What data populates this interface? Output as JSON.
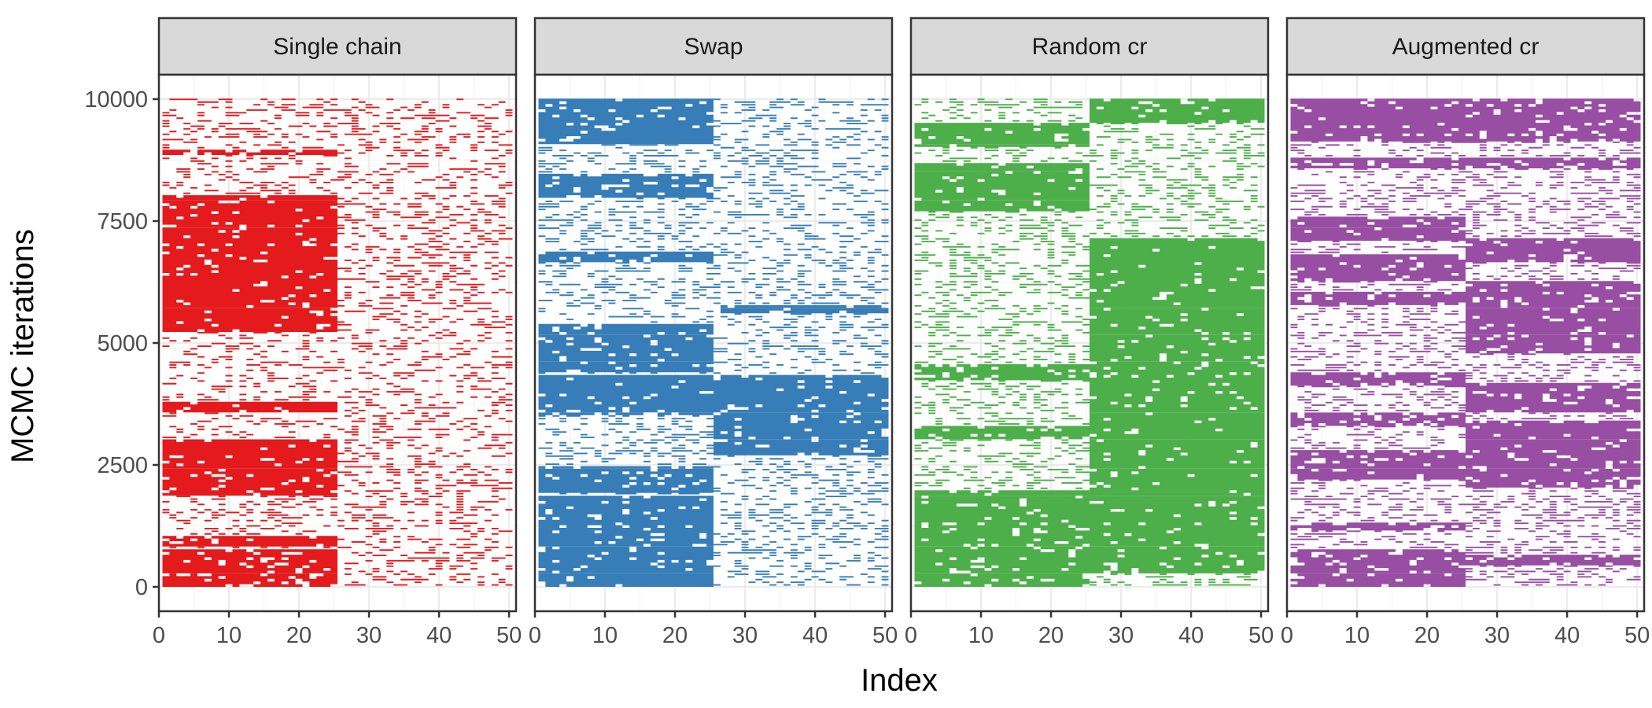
{
  "chart_data": {
    "type": "heatmap",
    "description_of_marks": "Each panel is a trace plot of binary inclusion indicators: one horizontal dash per MCMC iteration where the indicator at a given index is 1. Dense regions are blocks where indices were jointly selected.",
    "xlabel": "Index",
    "ylabel": "MCMC iterations",
    "xlim": [
      0,
      51
    ],
    "ylim": [
      -500,
      10500
    ],
    "x_ticks": [
      0,
      10,
      20,
      30,
      40,
      50
    ],
    "y_ticks": [
      0,
      2500,
      5000,
      7500,
      10000
    ],
    "y_tick_labels": [
      "0",
      "2500",
      "5000",
      "7500",
      "10000"
    ],
    "grid": true,
    "panels": [
      {
        "name": "Single chain",
        "color": "#e41a1c",
        "background_density": 0.27,
        "blocks": [
          {
            "x": [
              1,
              25
            ],
            "y": [
              0,
              750
            ],
            "density": 0.9
          },
          {
            "x": [
              1,
              25
            ],
            "y": [
              850,
              1050
            ],
            "density": 0.9
          },
          {
            "x": [
              1,
              25
            ],
            "y": [
              1850,
              3000
            ],
            "density": 0.9
          },
          {
            "x": [
              1,
              25
            ],
            "y": [
              3550,
              3800
            ],
            "density": 0.9
          },
          {
            "x": [
              1,
              25
            ],
            "y": [
              5200,
              8050
            ],
            "density": 0.92
          },
          {
            "x": [
              1,
              25
            ],
            "y": [
              8850,
              8950
            ],
            "density": 0.8
          }
        ]
      },
      {
        "name": "Swap",
        "color": "#377eb8",
        "background_density": 0.28,
        "blocks": [
          {
            "x": [
              1,
              25
            ],
            "y": [
              0,
              1850
            ],
            "density": 0.92
          },
          {
            "x": [
              1,
              25
            ],
            "y": [
              1900,
              2450
            ],
            "density": 0.92
          },
          {
            "x": [
              1,
              25
            ],
            "y": [
              3500,
              4350
            ],
            "density": 0.9
          },
          {
            "x": [
              26,
              50
            ],
            "y": [
              2700,
              4350
            ],
            "density": 0.9
          },
          {
            "x": [
              1,
              25
            ],
            "y": [
              4400,
              5400
            ],
            "density": 0.9
          },
          {
            "x": [
              26,
              50
            ],
            "y": [
              5600,
              5750
            ],
            "density": 0.8
          },
          {
            "x": [
              1,
              25
            ],
            "y": [
              6650,
              6850
            ],
            "density": 0.85
          },
          {
            "x": [
              1,
              25
            ],
            "y": [
              7950,
              8450
            ],
            "density": 0.88
          },
          {
            "x": [
              1,
              25
            ],
            "y": [
              9050,
              10000
            ],
            "density": 0.9
          }
        ]
      },
      {
        "name": "Random cr",
        "color": "#4daf4a",
        "background_density": 0.3,
        "blocks": [
          {
            "x": [
              1,
              25
            ],
            "y": [
              0,
              2000
            ],
            "density": 0.9
          },
          {
            "x": [
              26,
              50
            ],
            "y": [
              300,
              7150
            ],
            "density": 0.93
          },
          {
            "x": [
              1,
              25
            ],
            "y": [
              3000,
              3300
            ],
            "density": 0.85
          },
          {
            "x": [
              1,
              25
            ],
            "y": [
              4250,
              4550
            ],
            "density": 0.85
          },
          {
            "x": [
              1,
              25
            ],
            "y": [
              7700,
              8700
            ],
            "density": 0.9
          },
          {
            "x": [
              1,
              25
            ],
            "y": [
              9000,
              9500
            ],
            "density": 0.9
          },
          {
            "x": [
              26,
              50
            ],
            "y": [
              9500,
              10000
            ],
            "density": 0.9
          }
        ]
      },
      {
        "name": "Augmented cr",
        "color": "#984ea3",
        "background_density": 0.32,
        "blocks": [
          {
            "x": [
              1,
              25
            ],
            "y": [
              0,
              750
            ],
            "density": 0.9
          },
          {
            "x": [
              26,
              50
            ],
            "y": [
              450,
              650
            ],
            "density": 0.85
          },
          {
            "x": [
              1,
              25
            ],
            "y": [
              1150,
              1300
            ],
            "density": 0.8
          },
          {
            "x": [
              26,
              50
            ],
            "y": [
              2050,
              3400
            ],
            "density": 0.9
          },
          {
            "x": [
              1,
              25
            ],
            "y": [
              2200,
              2800
            ],
            "density": 0.9
          },
          {
            "x": [
              1,
              25
            ],
            "y": [
              3300,
              3600
            ],
            "density": 0.85
          },
          {
            "x": [
              26,
              50
            ],
            "y": [
              3550,
              4200
            ],
            "density": 0.9
          },
          {
            "x": [
              1,
              25
            ],
            "y": [
              4150,
              4400
            ],
            "density": 0.85
          },
          {
            "x": [
              26,
              50
            ],
            "y": [
              4800,
              6250
            ],
            "density": 0.9
          },
          {
            "x": [
              1,
              25
            ],
            "y": [
              5750,
              6050
            ],
            "density": 0.85
          },
          {
            "x": [
              1,
              25
            ],
            "y": [
              6250,
              6800
            ],
            "density": 0.9
          },
          {
            "x": [
              26,
              50
            ],
            "y": [
              6650,
              7150
            ],
            "density": 0.9
          },
          {
            "x": [
              1,
              25
            ],
            "y": [
              7100,
              7600
            ],
            "density": 0.9
          },
          {
            "x": [
              1,
              50
            ],
            "y": [
              8600,
              8800
            ],
            "density": 0.85
          },
          {
            "x": [
              1,
              50
            ],
            "y": [
              9150,
              10000
            ],
            "density": 0.9
          }
        ]
      }
    ]
  }
}
